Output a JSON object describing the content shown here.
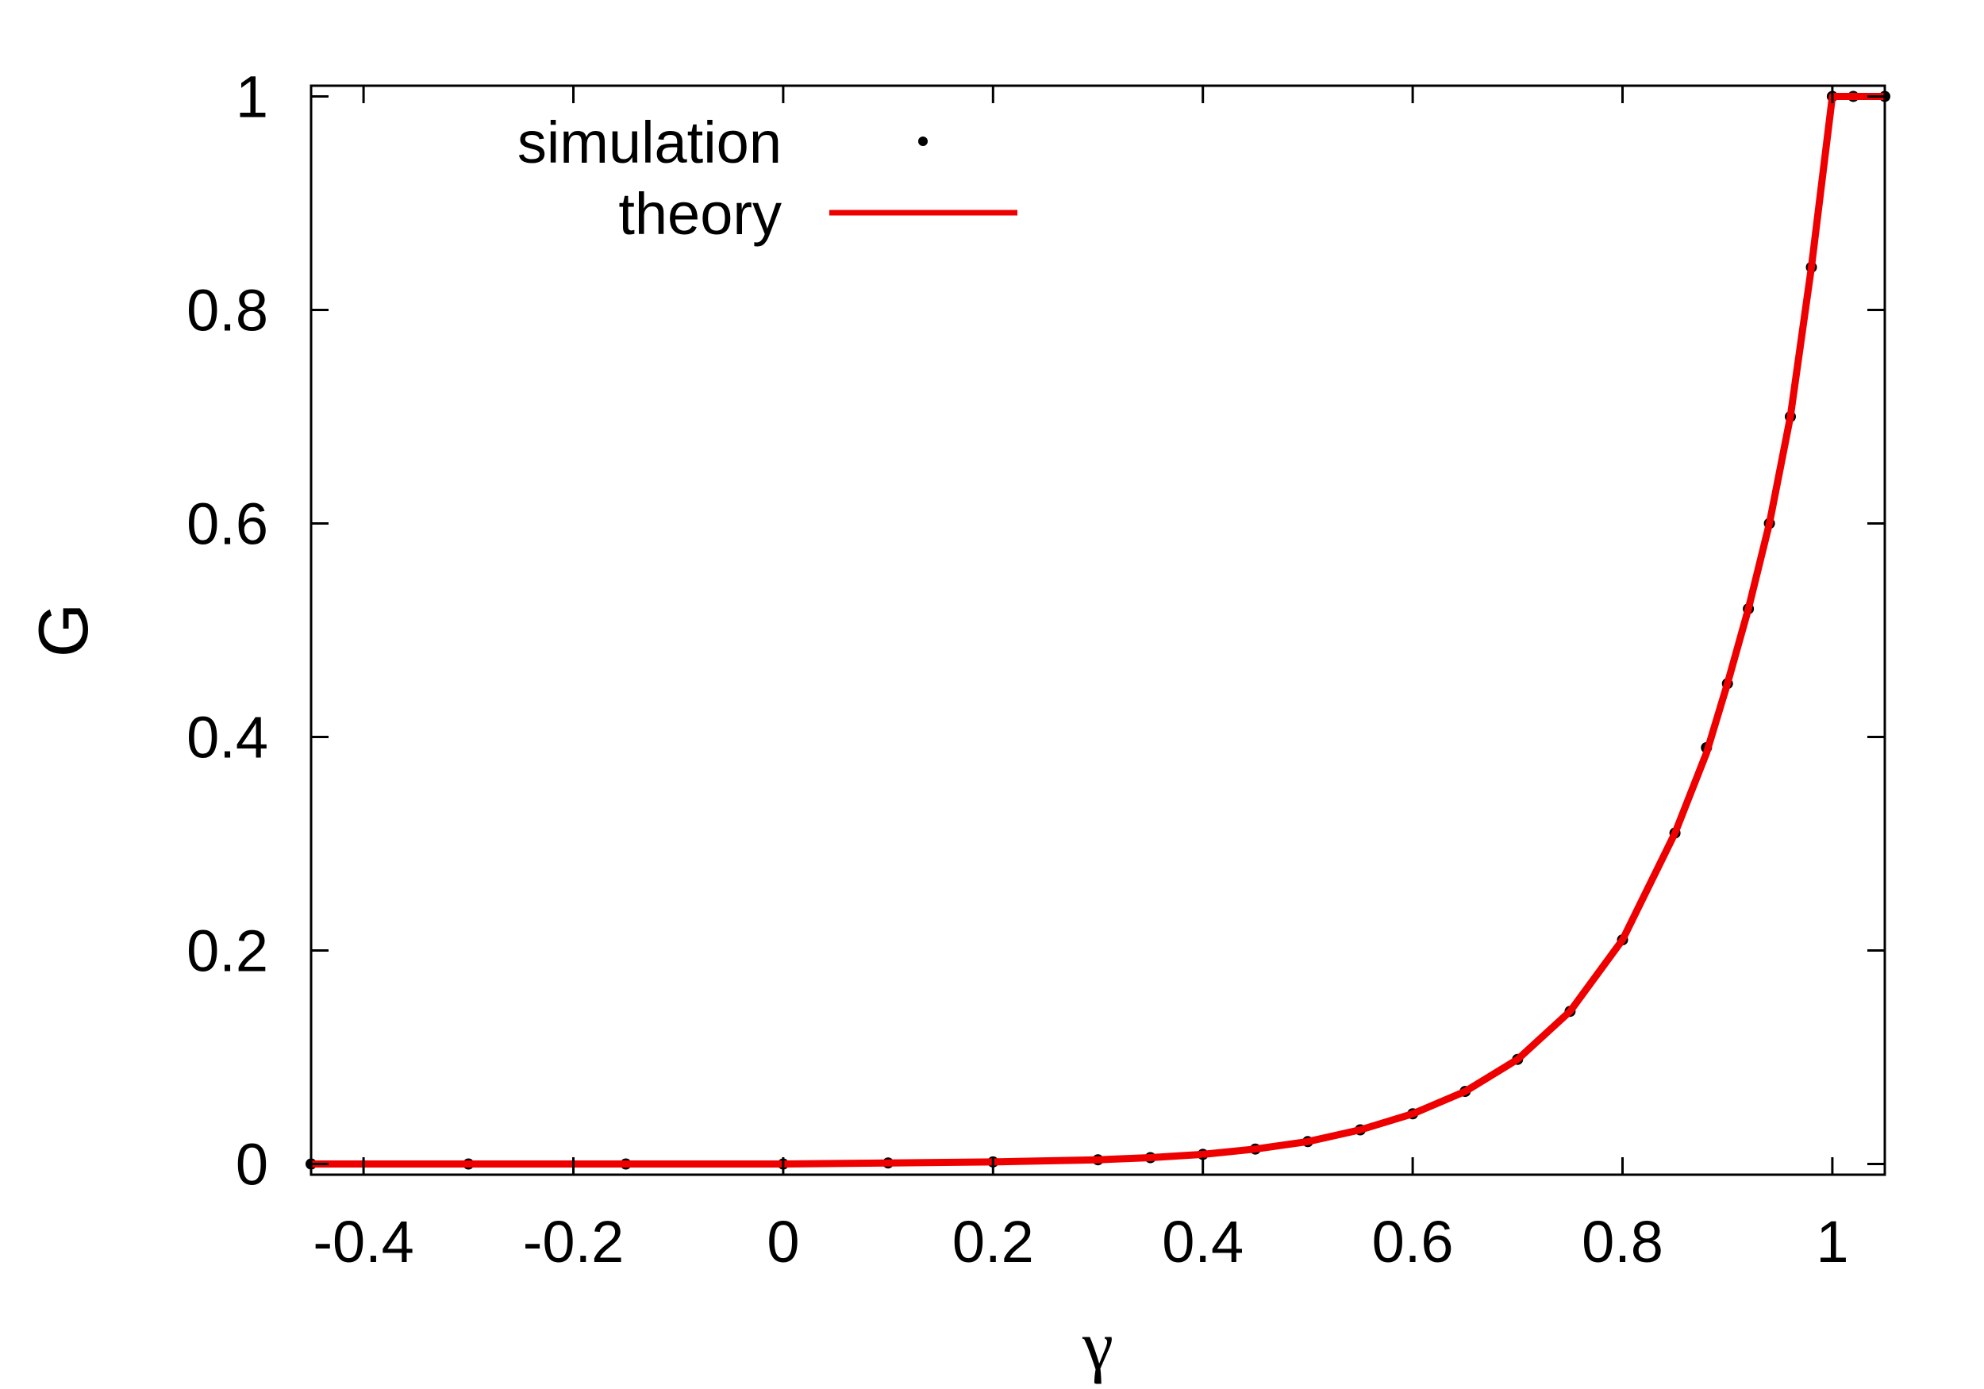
{
  "chart_data": {
    "type": "scatter",
    "xlabel": "γ",
    "ylabel": "G",
    "xlim": [
      -0.45,
      1.05
    ],
    "ylim": [
      -0.01,
      1.01
    ],
    "grid": false,
    "legend_position": "top-left",
    "x_ticks": [
      -0.4,
      -0.2,
      0,
      0.2,
      0.4,
      0.6,
      0.8,
      1
    ],
    "x_tick_labels": [
      "-0.4",
      "-0.2",
      "0",
      "0.2",
      "0.4",
      "0.6",
      "0.8",
      "1"
    ],
    "y_ticks": [
      0,
      0.2,
      0.4,
      0.6,
      0.8,
      1
    ],
    "y_tick_labels": [
      "0",
      "0.2",
      "0.4",
      "0.6",
      "0.8",
      "1"
    ],
    "series": [
      {
        "name": "simulation",
        "kind": "points",
        "color": "#000000",
        "x": [
          -0.45,
          -0.3,
          -0.15,
          0,
          0.1,
          0.2,
          0.3,
          0.35,
          0.4,
          0.45,
          0.5,
          0.55,
          0.6,
          0.65,
          0.7,
          0.75,
          0.8,
          0.85,
          0.88,
          0.9,
          0.92,
          0.94,
          0.96,
          0.98,
          1.0,
          1.02,
          1.05
        ],
        "y": [
          0,
          0,
          0,
          0,
          0.001,
          0.002,
          0.004,
          0.006,
          0.009,
          0.014,
          0.021,
          0.032,
          0.047,
          0.068,
          0.098,
          0.143,
          0.21,
          0.31,
          0.39,
          0.45,
          0.52,
          0.6,
          0.7,
          0.84,
          1.0,
          1.0,
          1.0
        ]
      },
      {
        "name": "theory",
        "kind": "line",
        "color": "#ee0000",
        "x": [
          -0.45,
          0,
          0.1,
          0.2,
          0.3,
          0.35,
          0.4,
          0.45,
          0.5,
          0.55,
          0.6,
          0.65,
          0.7,
          0.75,
          0.8,
          0.85,
          0.88,
          0.9,
          0.92,
          0.94,
          0.96,
          0.98,
          1.0,
          1.05
        ],
        "y": [
          0,
          0,
          0.001,
          0.002,
          0.004,
          0.006,
          0.009,
          0.014,
          0.021,
          0.032,
          0.047,
          0.068,
          0.098,
          0.143,
          0.21,
          0.31,
          0.385,
          0.45,
          0.52,
          0.6,
          0.7,
          0.84,
          1.0,
          1.0
        ]
      }
    ]
  }
}
